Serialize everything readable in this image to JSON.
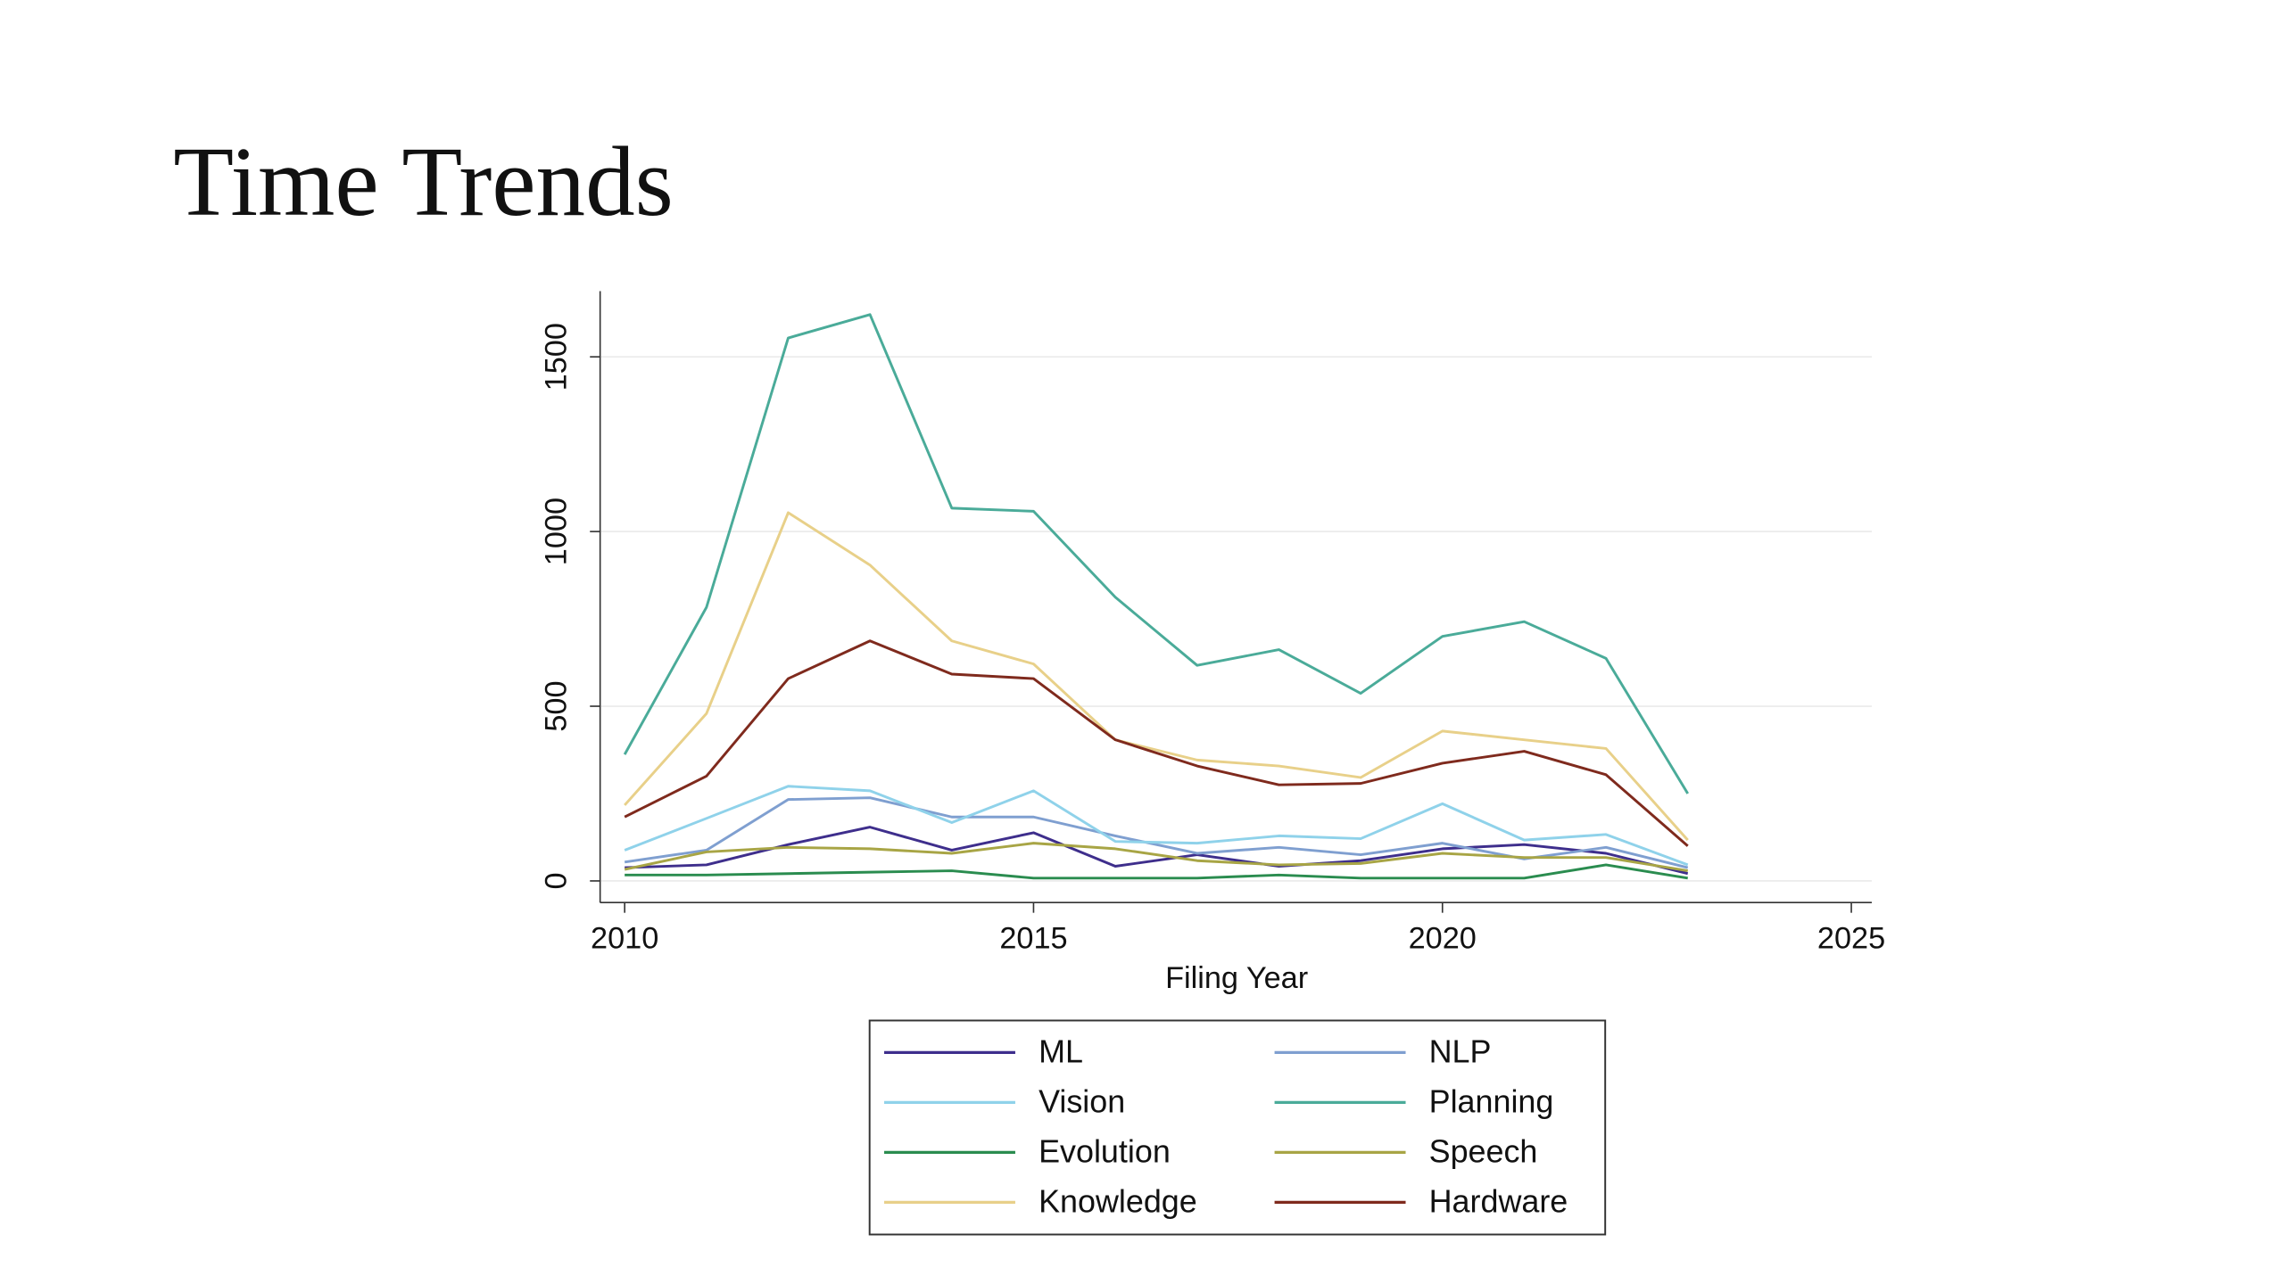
{
  "chart_data": {
    "type": "line",
    "title": "Time Trends",
    "xlabel": "Filing Year",
    "x": [
      2010,
      2011,
      2012,
      2013,
      2014,
      2015,
      2016,
      2017,
      2018,
      2019,
      2020,
      2021,
      2022,
      2023
    ],
    "series": [
      {
        "name": "ML",
        "color": "#3e2e8c",
        "values": [
          38,
          46,
          104,
          154,
          88,
          138,
          42,
          75,
          42,
          58,
          92,
          104,
          79,
          21
        ]
      },
      {
        "name": "NLP",
        "color": "#7f9fd0",
        "values": [
          54,
          88,
          233,
          238,
          183,
          183,
          129,
          79,
          96,
          75,
          108,
          63,
          96,
          38
        ]
      },
      {
        "name": "Vision",
        "color": "#8fd2ea",
        "values": [
          88,
          179,
          271,
          258,
          167,
          258,
          113,
          108,
          129,
          121,
          221,
          117,
          133,
          46
        ]
      },
      {
        "name": "Planning",
        "color": "#4aab99",
        "values": [
          362,
          783,
          1554,
          1621,
          1067,
          1058,
          812,
          617,
          662,
          537,
          700,
          742,
          637,
          250
        ]
      },
      {
        "name": "Evolution",
        "color": "#2a8c4f",
        "values": [
          17,
          17,
          21,
          25,
          29,
          8,
          8,
          8,
          17,
          8,
          8,
          8,
          46,
          8
        ]
      },
      {
        "name": "Speech",
        "color": "#a8a545",
        "values": [
          33,
          83,
          96,
          92,
          79,
          108,
          92,
          58,
          46,
          50,
          79,
          67,
          67,
          29
        ]
      },
      {
        "name": "Knowledge",
        "color": "#e8d089",
        "values": [
          217,
          479,
          1054,
          904,
          687,
          621,
          404,
          346,
          329,
          296,
          429,
          404,
          379,
          117
        ]
      },
      {
        "name": "Hardware",
        "color": "#7f2a1d",
        "values": [
          183,
          300,
          579,
          687,
          592,
          579,
          404,
          329,
          275,
          279,
          337,
          371,
          304,
          100
        ]
      }
    ],
    "xlim": [
      2009.7,
      2025.25
    ],
    "ylim": [
      -62,
      1688
    ],
    "xticks": [
      2010,
      2015,
      2020,
      2025
    ],
    "yticks": [
      0,
      500,
      1000,
      1500
    ],
    "grid": true
  }
}
